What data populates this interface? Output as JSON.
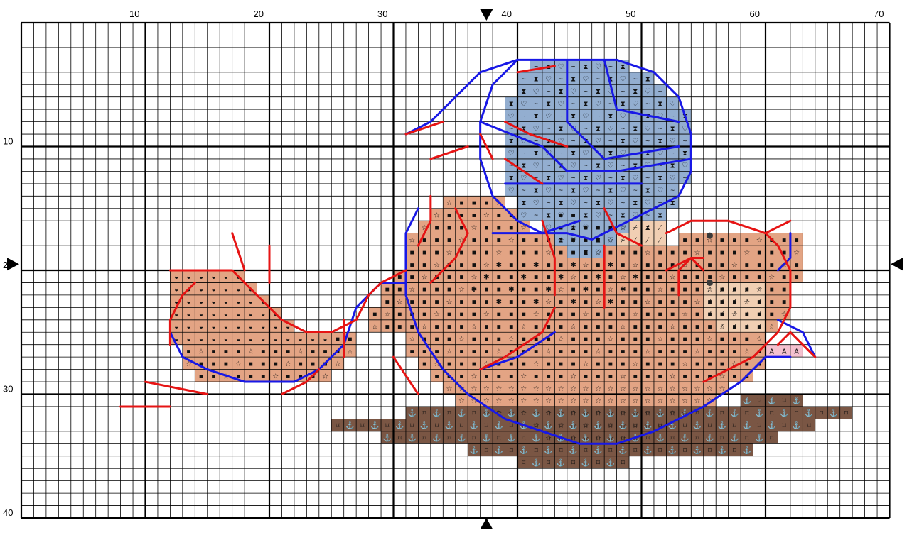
{
  "pattern": {
    "cols": 70,
    "rows": 40,
    "major_every": 10,
    "col_labels": [
      "10",
      "20",
      "30",
      "40",
      "50",
      "60",
      "70"
    ],
    "row_labels": [
      "10",
      "20",
      "30",
      "40"
    ],
    "center_col_marker": 37.5,
    "center_row_marker": 19.5
  },
  "colors": {
    "grid_minor": "#000000",
    "grid_major": "#000000",
    "skin": "#E3A484",
    "blanket_light": "#B9CFE0",
    "blanket_mid": "#93AED0",
    "blanket_dark": "#7F9DC6",
    "snout": "#F1CFB3",
    "ear_pink": "#F4C1CF",
    "ground_dark": "#5B3A2B",
    "ground_mid": "#7A5644",
    "backstitch_blue": "#1818E6",
    "backstitch_red": "#E61414"
  },
  "symbols": {
    "skin_dot": "■",
    "skin_star": "☆",
    "skin_asterisk": "✱",
    "skin_half": "◒",
    "blanket_heart": "♡",
    "blanket_hourglass": "⧗",
    "blanket_tilde": "~",
    "snout_slash": "⁄",
    "ear": "A",
    "ground_anchor": "⚓",
    "ground_box": "⌑"
  }
}
